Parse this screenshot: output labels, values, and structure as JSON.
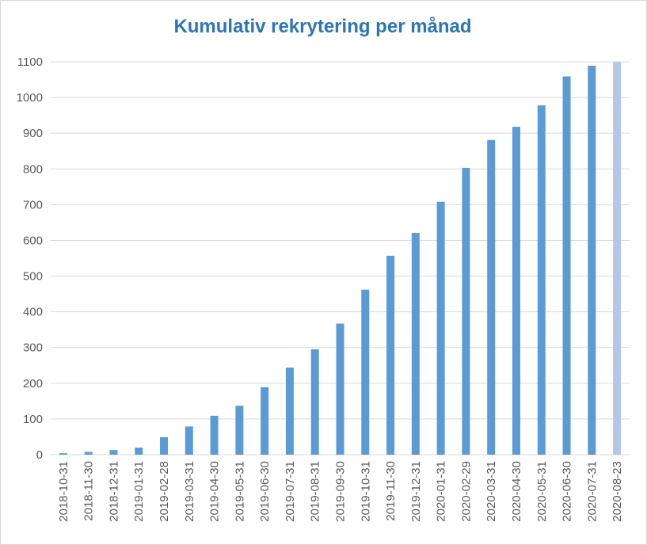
{
  "chart_data": {
    "type": "bar",
    "title": "Kumulativ rekrytering per månad",
    "xlabel": "",
    "ylabel": "",
    "ylim": [
      0,
      1100
    ],
    "yticks": [
      0,
      100,
      200,
      300,
      400,
      500,
      600,
      700,
      800,
      900,
      1000,
      1100
    ],
    "grid": true,
    "categories": [
      "2018-10-31",
      "2018-11-30",
      "2018-12-31",
      "2019-01-31",
      "2019-02-28",
      "2019-03-31",
      "2019-04-30",
      "2019-05-31",
      "2019-06-30",
      "2019-07-31",
      "2019-08-31",
      "2019-09-30",
      "2019-10-31",
      "2019-11-30",
      "2019-12-31",
      "2020-01-31",
      "2020-02-29",
      "2020-03-31",
      "2020-04-30",
      "2020-05-31",
      "2020-06-30",
      "2020-07-31",
      "2020-08-23"
    ],
    "values": [
      4,
      8,
      13,
      20,
      49,
      79,
      109,
      137,
      189,
      244,
      295,
      367,
      462,
      557,
      621,
      708,
      803,
      881,
      918,
      978,
      1059,
      1089,
      1100
    ],
    "colors": {
      "bar": "#5b9bd5",
      "last_bar": "#b4c7e7",
      "grid": "#d9d9d9",
      "title": "#2e75b6"
    }
  }
}
